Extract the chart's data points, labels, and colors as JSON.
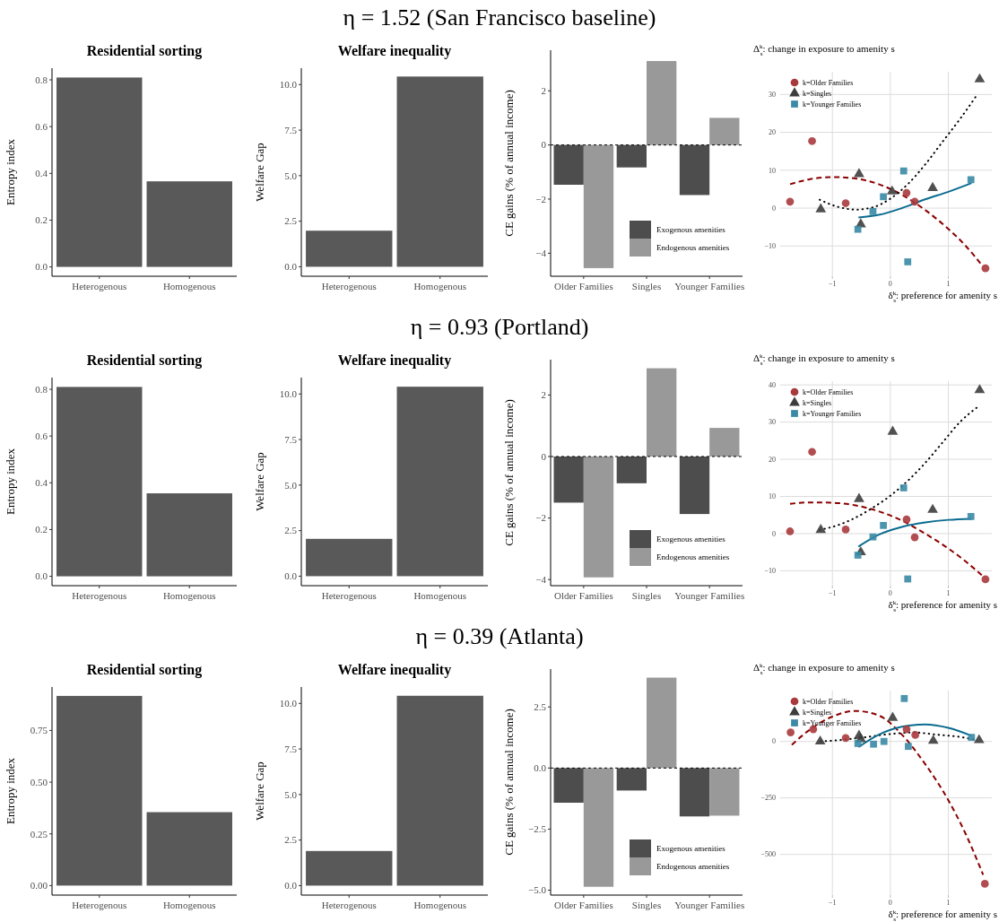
{
  "chart_data": [
    {
      "type": "other",
      "title": "η = 1.52 (San Francisco baseline)"
    },
    {
      "type": "bar",
      "title": "Residential sorting",
      "ylabel": "Entropy index",
      "categories": [
        "Heterogenous",
        "Homogenous"
      ],
      "values": [
        0.81,
        0.366
      ],
      "color": "#595959",
      "ylim": [
        -0.04,
        0.85
      ],
      "yticks": [
        {
          "value": 0,
          "label": "0.0"
        },
        {
          "value": 0.2,
          "label": "0.2"
        },
        {
          "value": 0.4,
          "label": "0.4"
        },
        {
          "value": 0.6,
          "label": "0.6"
        },
        {
          "value": 0.8,
          "label": "0.8"
        }
      ],
      "grid": false
    },
    {
      "type": "bar",
      "title": "Welfare inequality",
      "ylabel": "Welfare Gap",
      "categories": [
        "Heterogenous",
        "Homogenous"
      ],
      "values": [
        1.98,
        10.44
      ],
      "color": "#595959",
      "ylim": [
        -0.52,
        10.9
      ],
      "yticks": [
        {
          "value": 0,
          "label": "0.0"
        },
        {
          "value": 2.5,
          "label": "2.5"
        },
        {
          "value": 5,
          "label": "5.0"
        },
        {
          "value": 7.5,
          "label": "7.5"
        },
        {
          "value": 10,
          "label": "10.0"
        }
      ],
      "grid": false
    },
    {
      "type": "bar",
      "ylabel": "CE gains (% of annual income)",
      "categories": [
        "Older Families",
        "Singles",
        "Younger Families"
      ],
      "series": [
        {
          "name": "Exogenous amenities",
          "color": "#4d4d4d",
          "values": [
            -1.47,
            -0.83,
            -1.85
          ]
        },
        {
          "name": "Endogenous amenities",
          "color": "#999999",
          "values": [
            -4.55,
            3.1,
            1.0
          ]
        }
      ],
      "ylim": [
        -4.85,
        3.5
      ],
      "yticks": [
        {
          "value": -4,
          "label": "−4"
        },
        {
          "value": -2,
          "label": "−2"
        },
        0,
        2
      ],
      "ref_lines": [
        {
          "axis": "y",
          "value": 0,
          "line_style": "dashed"
        }
      ],
      "legend": "bottom right",
      "grid": false
    },
    {
      "type": "scatter",
      "ylabel": "Δ$^{k}$$_{s}$: change in exposure to amenity s",
      "xlabel": "δ$^{k}$$_{s}$: preference for amenity s",
      "series": [
        {
          "name": "k=Older Families",
          "type": "scatter",
          "marker": "circle",
          "color": "#a83a3d",
          "x": [
            -1.73,
            -1.35,
            -0.77,
            0.28,
            0.42,
            1.64
          ],
          "values": [
            1.7,
            17.7,
            1.3,
            4.0,
            1.7,
            -15.9
          ]
        },
        {
          "name": "k=Singles",
          "type": "scatter",
          "marker": "triangle",
          "color": "#3d3d3d",
          "x": [
            -1.2,
            -0.54,
            -0.51,
            0.03,
            0.73,
            1.54
          ],
          "values": [
            -0.3,
            9,
            -4.3,
            4.4,
            5.3,
            34
          ]
        },
        {
          "name": "k=Younger Families",
          "type": "scatter",
          "marker": "square",
          "color": "#3a8aa6",
          "x": [
            -0.56,
            -0.3,
            -0.12,
            0.23,
            0.3,
            1.39
          ],
          "values": [
            -5.6,
            -0.9,
            3.0,
            9.8,
            -14.2,
            7.5
          ]
        },
        {
          "type": "line",
          "line_style": "dashed",
          "color": "#8b0000",
          "x": [
            -1.73,
            -1.4,
            -1.0,
            -0.6,
            -0.2,
            0.2,
            0.6,
            1.0,
            1.3,
            1.6
          ],
          "values": [
            6.3,
            7.6,
            8.2,
            7.8,
            6.3,
            3.5,
            -0.5,
            -5.5,
            -10,
            -15.5
          ]
        },
        {
          "type": "line",
          "line_style": "dotted",
          "color": "#000000",
          "x": [
            -1.22,
            -0.9,
            -0.6,
            -0.3,
            0,
            0.3,
            0.6,
            0.9,
            1.2,
            1.5
          ],
          "values": [
            2.2,
            0.3,
            -0.4,
            0.2,
            2.5,
            6.3,
            11.5,
            17.5,
            23.5,
            30
          ]
        },
        {
          "type": "line",
          "line_style": "solid",
          "color": "#0a6b8f",
          "x": [
            -0.55,
            -0.2,
            0.2,
            0.6,
            1.0,
            1.4
          ],
          "values": [
            -2.5,
            -1.8,
            0.0,
            2.3,
            4.3,
            6.6
          ]
        }
      ],
      "xlim": [
        -1.9,
        1.75
      ],
      "xticks": [
        {
          "value": -1,
          "label": "−1"
        },
        {
          "value": 0,
          "label": "0"
        },
        {
          "value": 1,
          "label": "1"
        }
      ],
      "ylim": [
        -18,
        36
      ],
      "yticks": [
        {
          "value": -10,
          "label": "−10"
        },
        0,
        10,
        20,
        30
      ],
      "grid": true,
      "legend": "top left"
    },
    {
      "type": "other",
      "title": "η = 0.93 (Portland)"
    },
    {
      "type": "bar",
      "title": "Residential sorting",
      "ylabel": "Entropy index",
      "categories": [
        "Heterogenous",
        "Homogenous"
      ],
      "values": [
        0.81,
        0.355
      ],
      "color": "#595959",
      "ylim": [
        -0.04,
        0.85
      ],
      "yticks": [
        {
          "value": 0,
          "label": "0.0"
        },
        {
          "value": 0.2,
          "label": "0.2"
        },
        {
          "value": 0.4,
          "label": "0.4"
        },
        {
          "value": 0.6,
          "label": "0.6"
        },
        {
          "value": 0.8,
          "label": "0.8"
        }
      ],
      "grid": false
    },
    {
      "type": "bar",
      "title": "Welfare inequality",
      "ylabel": "Welfare Gap",
      "categories": [
        "Heterogenous",
        "Homogenous"
      ],
      "values": [
        2.05,
        10.4
      ],
      "color": "#595959",
      "ylim": [
        -0.52,
        10.9
      ],
      "yticks": [
        {
          "value": 0,
          "label": "0.0"
        },
        {
          "value": 2.5,
          "label": "2.5"
        },
        {
          "value": 5,
          "label": "5.0"
        },
        {
          "value": 7.5,
          "label": "7.5"
        },
        {
          "value": 10,
          "label": "10.0"
        }
      ],
      "grid": false
    },
    {
      "type": "bar",
      "ylabel": "CE gains (% of annual income)",
      "categories": [
        "Older Families",
        "Singles",
        "Younger Families"
      ],
      "series": [
        {
          "name": "Exogenous amenities",
          "color": "#4d4d4d",
          "values": [
            -1.5,
            -0.87,
            -1.87
          ]
        },
        {
          "name": "Endogenous amenities",
          "color": "#999999",
          "values": [
            -3.93,
            2.87,
            0.93
          ]
        }
      ],
      "ylim": [
        -4.2,
        3.15
      ],
      "yticks": [
        {
          "value": -4,
          "label": "−4"
        },
        {
          "value": -2,
          "label": "−2"
        },
        0,
        2
      ],
      "ref_lines": [
        {
          "axis": "y",
          "value": 0,
          "line_style": "dashed"
        }
      ],
      "legend": "bottom right",
      "grid": false
    },
    {
      "type": "scatter",
      "ylabel": "Δ$^{k}$$_{s}$: change in exposure to amenity s",
      "xlabel": "δ$^{k}$$_{s}$: preference for amenity s",
      "series": [
        {
          "name": "k=Older Families",
          "type": "scatter",
          "marker": "circle",
          "color": "#a83a3d",
          "x": [
            -1.73,
            -1.35,
            -0.77,
            0.28,
            0.42,
            1.64
          ],
          "values": [
            0.6,
            22,
            1.1,
            3.8,
            -1.0,
            -12.3
          ]
        },
        {
          "name": "k=Singles",
          "type": "scatter",
          "marker": "triangle",
          "color": "#3d3d3d",
          "x": [
            -1.2,
            -0.54,
            -0.51,
            0.04,
            0.73,
            1.54
          ],
          "values": [
            1,
            9.3,
            -5,
            27.4,
            6.4,
            38.6
          ]
        },
        {
          "name": "k=Younger Families",
          "type": "scatter",
          "marker": "square",
          "color": "#3a8aa6",
          "x": [
            -0.56,
            -0.3,
            -0.12,
            0.23,
            0.3,
            1.39
          ],
          "values": [
            -5.8,
            -0.9,
            2.2,
            12.3,
            -12.2,
            4.6
          ]
        },
        {
          "type": "line",
          "line_style": "dashed",
          "color": "#8b0000",
          "x": [
            -1.73,
            -1.4,
            -1.0,
            -0.6,
            -0.2,
            0.2,
            0.6,
            1.0,
            1.3,
            1.6
          ],
          "values": [
            8.0,
            8.4,
            8.3,
            7.6,
            6.0,
            3.5,
            0,
            -4.0,
            -7.5,
            -11.5
          ]
        },
        {
          "type": "line",
          "line_style": "dotted",
          "color": "#000000",
          "x": [
            -1.22,
            -0.9,
            -0.6,
            -0.3,
            0,
            0.3,
            0.6,
            0.9,
            1.2,
            1.5
          ],
          "values": [
            1.0,
            2.3,
            4.3,
            7.0,
            10.2,
            14.2,
            19.0,
            24.5,
            30,
            34
          ]
        },
        {
          "type": "line",
          "line_style": "solid",
          "color": "#0a6b8f",
          "x": [
            -0.55,
            -0.2,
            0.2,
            0.6,
            1.0,
            1.4
          ],
          "values": [
            -3.5,
            -0.3,
            1.8,
            3.0,
            3.7,
            4.0
          ]
        }
      ],
      "xlim": [
        -1.9,
        1.75
      ],
      "xticks": [
        {
          "value": -1,
          "label": "−1"
        },
        {
          "value": 0,
          "label": "0"
        },
        {
          "value": 1,
          "label": "1"
        }
      ],
      "ylim": [
        -14,
        41
      ],
      "yticks": [
        {
          "value": -10,
          "label": "−10"
        },
        0,
        10,
        20,
        30,
        40
      ],
      "grid": true,
      "legend": "top left"
    },
    {
      "type": "other",
      "title": "η = 0.39 (Atlanta)"
    },
    {
      "type": "bar",
      "title": "Residential sorting",
      "ylabel": "Entropy index",
      "categories": [
        "Heterogenous",
        "Homogenous"
      ],
      "values": [
        0.917,
        0.355
      ],
      "color": "#595959",
      "ylim": [
        -0.046,
        0.96
      ],
      "yticks": [
        {
          "value": 0,
          "label": "0.00"
        },
        {
          "value": 0.25,
          "label": "0.25"
        },
        {
          "value": 0.5,
          "label": "0.50"
        },
        {
          "value": 0.75,
          "label": "0.75"
        }
      ],
      "grid": false
    },
    {
      "type": "bar",
      "title": "Welfare inequality",
      "ylabel": "Welfare Gap",
      "categories": [
        "Heterogenous",
        "Homogenous"
      ],
      "values": [
        1.9,
        10.42
      ],
      "color": "#595959",
      "ylim": [
        -0.52,
        10.9
      ],
      "yticks": [
        {
          "value": 0,
          "label": "0.0"
        },
        {
          "value": 2.5,
          "label": "2.5"
        },
        {
          "value": 5,
          "label": "5.0"
        },
        {
          "value": 7.5,
          "label": "7.5"
        },
        {
          "value": 10,
          "label": "10.0"
        }
      ],
      "grid": false
    },
    {
      "type": "bar",
      "ylabel": "CE gains (% of annual income)",
      "categories": [
        "Older Families",
        "Singles",
        "Younger Families"
      ],
      "series": [
        {
          "name": "Exogenous amenities",
          "color": "#4d4d4d",
          "values": [
            -1.42,
            -0.92,
            -1.98
          ]
        },
        {
          "name": "Endogenous amenities",
          "color": "#999999",
          "values": [
            -4.86,
            3.7,
            -1.95
          ]
        }
      ],
      "ylim": [
        -5.2,
        4.05
      ],
      "yticks": [
        {
          "value": -5,
          "label": "−5.0"
        },
        {
          "value": -2.5,
          "label": "−2.5"
        },
        {
          "value": 0,
          "label": "0.0"
        },
        2.5
      ],
      "ref_lines": [
        {
          "axis": "y",
          "value": 0,
          "line_style": "dashed"
        }
      ],
      "legend": "bottom right",
      "grid": false
    },
    {
      "type": "scatter",
      "ylabel": "Δ$^{k}$$_{s}$: change in exposure to amenity s",
      "xlabel": "δ$^{k}$$_{s}$: preference for amenity s",
      "series": [
        {
          "name": "k=Older Families",
          "type": "scatter",
          "marker": "circle",
          "color": "#a83a3d",
          "x": [
            -1.72,
            -1.33,
            -0.77,
            0.28,
            0.43,
            1.63
          ],
          "values": [
            40,
            54,
            15,
            54,
            29,
            -630
          ]
        },
        {
          "name": "k=Singles",
          "type": "scatter",
          "marker": "triangle",
          "color": "#3d3d3d",
          "x": [
            -1.21,
            -0.54,
            -0.51,
            0.04,
            0.74,
            1.53
          ],
          "values": [
            0,
            25,
            10,
            105,
            3,
            6
          ]
        },
        {
          "name": "k=Younger Families",
          "type": "scatter",
          "marker": "square",
          "color": "#3a8aa6",
          "x": [
            -0.56,
            -0.29,
            -0.11,
            0.24,
            0.31,
            1.4
          ],
          "values": [
            -9,
            -12,
            0,
            190,
            -22,
            18
          ]
        },
        {
          "type": "line",
          "line_style": "dashed",
          "color": "#8b0000",
          "x": [
            -1.7,
            -1.4,
            -1.0,
            -0.6,
            -0.2,
            0.2,
            0.6,
            1.0,
            1.3,
            1.6
          ],
          "values": [
            -15,
            50,
            110,
            135,
            115,
            30,
            -100,
            -260,
            -410,
            -590
          ]
        },
        {
          "type": "line",
          "line_style": "dotted",
          "color": "#000000",
          "x": [
            -1.2,
            -0.8,
            -0.4,
            0,
            0.4,
            0.8,
            1.2,
            1.5
          ],
          "values": [
            0,
            8,
            20,
            33,
            40,
            30,
            20,
            5
          ]
        },
        {
          "type": "line",
          "line_style": "solid",
          "color": "#0a6b8f",
          "x": [
            -0.55,
            -0.2,
            0.2,
            0.6,
            1.0,
            1.4
          ],
          "values": [
            -25,
            30,
            65,
            75,
            60,
            25
          ]
        }
      ],
      "xlim": [
        -1.9,
        1.75
      ],
      "xticks": [
        {
          "value": -1,
          "label": "−1"
        },
        {
          "value": 0,
          "label": "0"
        },
        {
          "value": 1,
          "label": "1"
        }
      ],
      "ylim": [
        -680,
        225
      ],
      "yticks": [
        {
          "value": -500,
          "label": "−500"
        },
        {
          "value": -250,
          "label": "−250"
        },
        0
      ],
      "grid": true,
      "legend": "top left"
    }
  ]
}
